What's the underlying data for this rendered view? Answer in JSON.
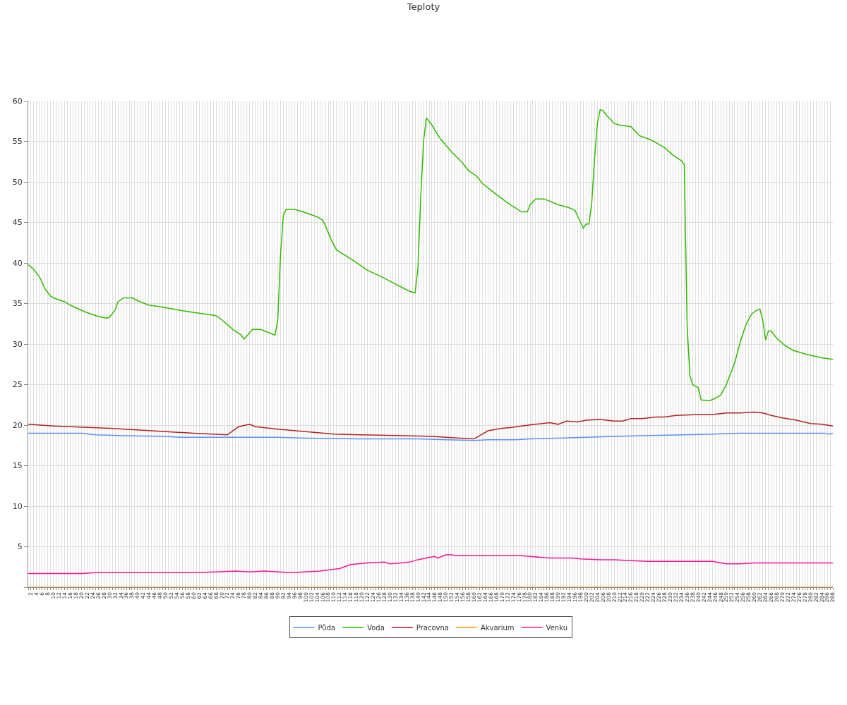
{
  "chart_data": {
    "type": "line",
    "title": "Teploty",
    "xlim": [
      1,
      288
    ],
    "xticks": [
      {
        "value": 1,
        "label": null
      },
      2,
      {
        "value": 3,
        "label": null
      },
      4,
      {
        "value": 5,
        "label": null
      },
      6,
      {
        "value": 7,
        "label": null
      },
      8,
      {
        "value": 9,
        "label": null
      },
      10,
      {
        "value": 11,
        "label": null
      },
      12,
      {
        "value": 13,
        "label": null
      },
      14,
      {
        "value": 15,
        "label": null
      },
      16,
      {
        "value": 17,
        "label": null
      },
      18,
      {
        "value": 19,
        "label": null
      },
      20,
      {
        "value": 21,
        "label": null
      },
      22,
      {
        "value": 23,
        "label": null
      },
      24,
      {
        "value": 25,
        "label": null
      },
      26,
      {
        "value": 27,
        "label": null
      },
      28,
      {
        "value": 29,
        "label": null
      },
      30,
      {
        "value": 31,
        "label": null
      },
      32,
      {
        "value": 33,
        "label": null
      },
      34,
      {
        "value": 35,
        "label": null
      },
      36,
      {
        "value": 37,
        "label": null
      },
      38,
      {
        "value": 39,
        "label": null
      },
      40,
      {
        "value": 41,
        "label": null
      },
      42,
      {
        "value": 43,
        "label": null
      },
      44,
      {
        "value": 45,
        "label": null
      },
      46,
      {
        "value": 47,
        "label": null
      },
      48,
      {
        "value": 49,
        "label": null
      },
      50,
      {
        "value": 51,
        "label": null
      },
      52,
      {
        "value": 53,
        "label": null
      },
      54,
      {
        "value": 55,
        "label": null
      },
      56,
      {
        "value": 57,
        "label": null
      },
      58,
      {
        "value": 59,
        "label": null
      },
      60,
      {
        "value": 61,
        "label": null
      },
      62,
      {
        "value": 63,
        "label": null
      },
      64,
      {
        "value": 65,
        "label": null
      },
      66,
      {
        "value": 67,
        "label": null
      },
      68,
      {
        "value": 69,
        "label": null
      },
      70,
      {
        "value": 71,
        "label": null
      },
      72,
      {
        "value": 73,
        "label": null
      },
      74,
      {
        "value": 75,
        "label": null
      },
      76,
      {
        "value": 77,
        "label": null
      },
      78,
      {
        "value": 79,
        "label": null
      },
      80,
      {
        "value": 81,
        "label": null
      },
      82,
      {
        "value": 83,
        "label": null
      },
      84,
      {
        "value": 85,
        "label": null
      },
      86,
      {
        "value": 87,
        "label": null
      },
      88,
      {
        "value": 89,
        "label": null
      },
      90,
      {
        "value": 91,
        "label": null
      },
      92,
      {
        "value": 93,
        "label": null
      },
      94,
      {
        "value": 95,
        "label": null
      },
      96,
      {
        "value": 97,
        "label": null
      },
      98,
      {
        "value": 99,
        "label": null
      },
      100,
      {
        "value": 101,
        "label": null
      },
      102,
      {
        "value": 103,
        "label": null
      },
      104,
      {
        "value": 105,
        "label": null
      },
      106,
      {
        "value": 107,
        "label": null
      },
      108,
      {
        "value": 109,
        "label": null
      },
      110,
      {
        "value": 111,
        "label": null
      },
      112,
      {
        "value": 113,
        "label": null
      },
      114,
      {
        "value": 115,
        "label": null
      },
      116,
      {
        "value": 117,
        "label": null
      },
      118,
      {
        "value": 119,
        "label": null
      },
      120,
      {
        "value": 121,
        "label": null
      },
      122,
      {
        "value": 123,
        "label": null
      },
      124,
      {
        "value": 125,
        "label": null
      },
      126,
      {
        "value": 127,
        "label": null
      },
      128,
      {
        "value": 129,
        "label": null
      },
      130,
      {
        "value": 131,
        "label": null
      },
      132,
      {
        "value": 133,
        "label": null
      },
      134,
      {
        "value": 135,
        "label": null
      },
      136,
      {
        "value": 137,
        "label": null
      },
      138,
      {
        "value": 139,
        "label": null
      },
      140,
      {
        "value": 141,
        "label": null
      },
      142,
      {
        "value": 143,
        "label": null
      },
      144,
      {
        "value": 145,
        "label": null
      },
      146,
      {
        "value": 147,
        "label": null
      },
      148,
      {
        "value": 149,
        "label": null
      },
      150,
      {
        "value": 151,
        "label": null
      },
      152,
      {
        "value": 153,
        "label": null
      },
      154,
      {
        "value": 155,
        "label": null
      },
      156,
      {
        "value": 157,
        "label": null
      },
      158,
      {
        "value": 159,
        "label": null
      },
      160,
      {
        "value": 161,
        "label": null
      },
      162,
      {
        "value": 163,
        "label": null
      },
      164,
      {
        "value": 165,
        "label": null
      },
      166,
      {
        "value": 167,
        "label": null
      },
      168,
      {
        "value": 169,
        "label": null
      },
      170,
      {
        "value": 171,
        "label": null
      },
      172,
      {
        "value": 173,
        "label": null
      },
      174,
      {
        "value": 175,
        "label": null
      },
      176,
      {
        "value": 177,
        "label": null
      },
      178,
      {
        "value": 179,
        "label": null
      },
      180,
      {
        "value": 181,
        "label": null
      },
      182,
      {
        "value": 183,
        "label": null
      },
      184,
      {
        "value": 185,
        "label": null
      },
      186,
      {
        "value": 187,
        "label": null
      },
      188,
      {
        "value": 189,
        "label": null
      },
      190,
      {
        "value": 191,
        "label": null
      },
      192,
      {
        "value": 193,
        "label": null
      },
      194,
      {
        "value": 195,
        "label": null
      },
      196,
      {
        "value": 197,
        "label": null
      },
      198,
      {
        "value": 199,
        "label": null
      },
      200,
      {
        "value": 201,
        "label": null
      },
      202,
      {
        "value": 203,
        "label": null
      },
      204,
      {
        "value": 205,
        "label": null
      },
      206,
      {
        "value": 207,
        "label": null
      },
      208,
      {
        "value": 209,
        "label": null
      },
      210,
      {
        "value": 211,
        "label": null
      },
      212,
      {
        "value": 213,
        "label": null
      },
      214,
      {
        "value": 215,
        "label": null
      },
      216,
      {
        "value": 217,
        "label": null
      },
      218,
      {
        "value": 219,
        "label": null
      },
      220,
      {
        "value": 221,
        "label": null
      },
      222,
      {
        "value": 223,
        "label": null
      },
      224,
      {
        "value": 225,
        "label": null
      },
      226,
      {
        "value": 227,
        "label": null
      },
      228,
      {
        "value": 229,
        "label": null
      },
      230,
      {
        "value": 231,
        "label": null
      },
      232,
      {
        "value": 233,
        "label": null
      },
      234,
      {
        "value": 235,
        "label": null
      },
      236,
      {
        "value": 237,
        "label": null
      },
      238,
      {
        "value": 239,
        "label": null
      },
      240,
      {
        "value": 241,
        "label": null
      },
      242,
      {
        "value": 243,
        "label": null
      },
      244,
      {
        "value": 245,
        "label": null
      },
      246,
      {
        "value": 247,
        "label": null
      },
      248,
      {
        "value": 249,
        "label": null
      },
      250,
      {
        "value": 251,
        "label": null
      },
      252,
      {
        "value": 253,
        "label": null
      },
      254,
      {
        "value": 255,
        "label": null
      },
      256,
      {
        "value": 257,
        "label": null
      },
      258,
      {
        "value": 259,
        "label": null
      },
      260,
      {
        "value": 261,
        "label": null
      },
      262,
      {
        "value": 263,
        "label": null
      },
      264,
      {
        "value": 265,
        "label": null
      },
      266,
      {
        "value": 267,
        "label": null
      },
      268,
      {
        "value": 269,
        "label": null
      },
      270,
      {
        "value": 271,
        "label": null
      },
      272,
      {
        "value": 273,
        "label": null
      },
      274,
      {
        "value": 275,
        "label": null
      },
      276,
      {
        "value": 277,
        "label": null
      },
      278,
      {
        "value": 279,
        "label": null
      },
      280,
      {
        "value": 281,
        "label": null
      },
      282,
      {
        "value": 283,
        "label": null
      },
      284,
      {
        "value": 285,
        "label": null
      },
      286,
      {
        "value": 287,
        "label": null
      },
      288
    ],
    "ylim": [
      0,
      60
    ],
    "yticks": [
      {
        "value": 0,
        "label": null
      },
      5,
      10,
      15,
      20,
      25,
      30,
      35,
      40,
      45,
      50,
      55,
      60
    ],
    "grid": true,
    "legend": "bottom",
    "marker": "none",
    "line_style": "solid",
    "series": [
      {
        "name": "Půda",
        "color": "#5b8ff9",
        "x": [
          1,
          20,
          25,
          35,
          50,
          55,
          90,
          100,
          120,
          140,
          150,
          160,
          165,
          175,
          180,
          190,
          200,
          210,
          220,
          235,
          245,
          255,
          270,
          285,
          287,
          288
        ],
        "values": [
          19.0,
          19.0,
          18.8,
          18.7,
          18.6,
          18.5,
          18.5,
          18.4,
          18.3,
          18.3,
          18.2,
          18.1,
          18.2,
          18.2,
          18.3,
          18.4,
          18.5,
          18.6,
          18.7,
          18.8,
          18.9,
          19.0,
          19.0,
          19.0,
          18.9,
          19.0
        ]
      },
      {
        "name": "Voda",
        "color": "#33bb00",
        "x": [
          1,
          3,
          5,
          7,
          9,
          10,
          14,
          16,
          21,
          26,
          29,
          30,
          32,
          33,
          35,
          38,
          41,
          44,
          48,
          53,
          56,
          64,
          68,
          70,
          74,
          77,
          78,
          81,
          84,
          89,
          90,
          91,
          92,
          93,
          96,
          99,
          104,
          106,
          107,
          109,
          111,
          117,
          122,
          127,
          132,
          137,
          139,
          140,
          141,
          142,
          143,
          145,
          148,
          152,
          156,
          158,
          161,
          163,
          167,
          172,
          177,
          179,
          180,
          182,
          185,
          190,
          194,
          196,
          198,
          199,
          200,
          201,
          202,
          203,
          204,
          205,
          206,
          207,
          210,
          212,
          216,
          219,
          223,
          228,
          231,
          234,
          235,
          236,
          237,
          238,
          240,
          241,
          244,
          246,
          248,
          250,
          253,
          255,
          257,
          259,
          261,
          262,
          263,
          264,
          265,
          266,
          268,
          271,
          274,
          279,
          284,
          288
        ],
        "values": [
          39.8,
          39.2,
          38.3,
          36.8,
          35.9,
          35.7,
          35.2,
          34.8,
          34.0,
          33.4,
          33.2,
          33.3,
          34.2,
          35.2,
          35.7,
          35.7,
          35.2,
          34.8,
          34.6,
          34.3,
          34.1,
          33.7,
          33.5,
          33.0,
          31.8,
          31.1,
          30.6,
          31.8,
          31.8,
          31.1,
          32.9,
          41.1,
          45.9,
          46.6,
          46.6,
          46.3,
          45.7,
          45.3,
          44.6,
          42.9,
          41.6,
          40.3,
          39.1,
          38.3,
          37.4,
          36.5,
          36.3,
          39.4,
          48.1,
          55.0,
          57.9,
          57.0,
          55.3,
          53.7,
          52.3,
          51.4,
          50.7,
          49.8,
          48.7,
          47.4,
          46.3,
          46.3,
          47.2,
          47.9,
          47.9,
          47.2,
          46.8,
          46.5,
          45.0,
          44.3,
          44.8,
          44.8,
          47.5,
          52.9,
          57.2,
          58.9,
          58.8,
          58.3,
          57.2,
          57.0,
          56.8,
          55.7,
          55.2,
          54.2,
          53.3,
          52.6,
          52.1,
          32.4,
          26.1,
          25.0,
          24.6,
          23.1,
          23.0,
          23.3,
          23.7,
          25.0,
          27.7,
          30.3,
          32.4,
          33.7,
          34.2,
          34.3,
          32.9,
          30.5,
          31.6,
          31.6,
          30.7,
          29.8,
          29.2,
          28.7,
          28.3,
          28.1
        ]
      },
      {
        "name": "Pracovna",
        "color": "#b22222",
        "x": [
          1,
          10,
          30,
          45,
          60,
          72,
          76,
          80,
          82,
          90,
          100,
          110,
          120,
          135,
          145,
          155,
          160,
          163,
          165,
          170,
          173,
          177,
          182,
          187,
          190,
          193,
          197,
          200,
          205,
          210,
          213,
          216,
          220,
          225,
          228,
          232,
          240,
          245,
          250,
          255,
          260,
          263,
          266,
          270,
          275,
          280,
          284,
          288
        ],
        "values": [
          20.1,
          19.9,
          19.6,
          19.3,
          19.0,
          18.8,
          19.8,
          20.1,
          19.8,
          19.5,
          19.2,
          18.9,
          18.8,
          18.7,
          18.6,
          18.4,
          18.3,
          18.9,
          19.3,
          19.6,
          19.7,
          19.9,
          20.1,
          20.3,
          20.1,
          20.5,
          20.4,
          20.6,
          20.7,
          20.5,
          20.5,
          20.8,
          20.8,
          21.0,
          21.0,
          21.2,
          21.3,
          21.3,
          21.5,
          21.5,
          21.6,
          21.5,
          21.2,
          20.9,
          20.6,
          20.2,
          20.1,
          19.9
        ]
      },
      {
        "name": "Akvarium",
        "color": "#ff9900",
        "x": [
          1,
          288
        ],
        "values": [
          0,
          0
        ]
      },
      {
        "name": "Venku",
        "color": "#ff1493",
        "x": [
          1,
          20,
          25,
          50,
          60,
          68,
          75,
          80,
          85,
          95,
          105,
          112,
          116,
          122,
          128,
          130,
          134,
          137,
          140,
          143,
          146,
          147,
          150,
          152,
          154,
          160,
          170,
          177,
          180,
          187,
          195,
          198,
          205,
          210,
          215,
          222,
          235,
          245,
          250,
          255,
          260,
          270,
          280,
          288
        ],
        "values": [
          1.7,
          1.7,
          1.8,
          1.8,
          1.8,
          1.9,
          2.0,
          1.9,
          2.0,
          1.8,
          2.0,
          2.3,
          2.8,
          3.0,
          3.1,
          2.9,
          3.0,
          3.1,
          3.4,
          3.6,
          3.8,
          3.6,
          4.0,
          4.0,
          3.9,
          3.9,
          3.9,
          3.9,
          3.8,
          3.6,
          3.6,
          3.5,
          3.4,
          3.4,
          3.3,
          3.2,
          3.2,
          3.2,
          2.9,
          2.9,
          3.0,
          3.0,
          3.0,
          3.0
        ]
      }
    ]
  }
}
